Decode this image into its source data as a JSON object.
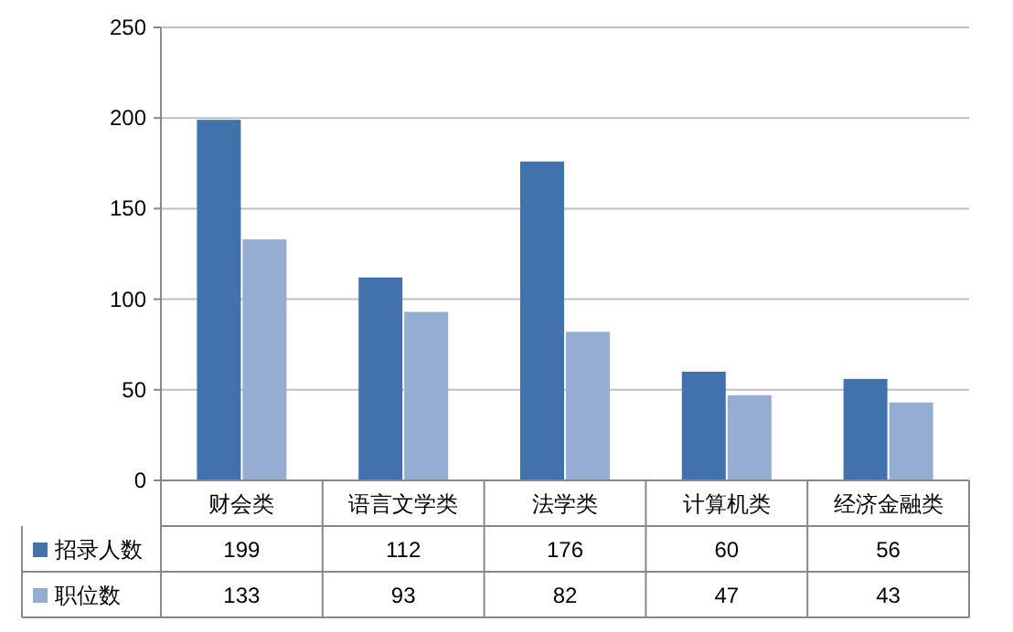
{
  "chart_data": {
    "type": "bar",
    "categories": [
      "财会类",
      "语言文学类",
      "法学类",
      "计算机类",
      "经济金融类"
    ],
    "series": [
      {
        "name": "招录人数",
        "color": "#4272ab",
        "values": [
          199,
          112,
          176,
          60,
          56
        ]
      },
      {
        "name": "职位数",
        "color": "#95acd3",
        "values": [
          133,
          93,
          82,
          47,
          43
        ]
      }
    ],
    "ylim": [
      0,
      250
    ],
    "yticks": [
      0,
      50,
      100,
      150,
      200,
      250
    ],
    "grid": "y",
    "data_labels": true,
    "legend": "bottom"
  }
}
